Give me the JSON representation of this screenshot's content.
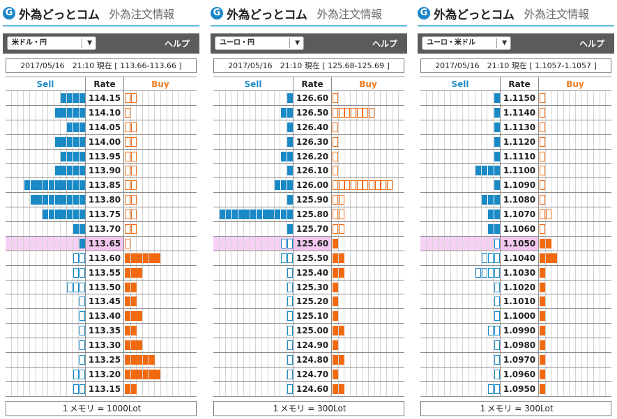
{
  "panels": [
    {
      "brand": "外為どっとコム",
      "brand_icon": "G",
      "subtitle": "外為注文情報",
      "pair": "米ドル・円",
      "help": "ヘルプ",
      "time": "2017/05/16　21:10 現在 [ 113.66-113.66 ]",
      "col_sell": "Sell",
      "col_rate": "Rate",
      "col_buy": "Buy",
      "current_rate": "113.65",
      "footer": "１メモリ = 1000Lot",
      "rows": [
        {
          "rate": "114.15",
          "sell": 4,
          "sell_style": "filled",
          "buy": 2,
          "buy_style": "outline"
        },
        {
          "rate": "114.10",
          "sell": 5,
          "sell_style": "filled",
          "buy": 1,
          "buy_style": "outline"
        },
        {
          "rate": "114.05",
          "sell": 3,
          "sell_style": "filled",
          "buy": 2,
          "buy_style": "outline"
        },
        {
          "rate": "114.00",
          "sell": 5,
          "sell_style": "filled",
          "buy": 2,
          "buy_style": "outline"
        },
        {
          "rate": "113.95",
          "sell": 4,
          "sell_style": "filled",
          "buy": 2,
          "buy_style": "outline"
        },
        {
          "rate": "113.90",
          "sell": 5,
          "sell_style": "filled",
          "buy": 2,
          "buy_style": "outline"
        },
        {
          "rate": "113.85",
          "sell": 10,
          "sell_style": "filled",
          "buy": 2,
          "buy_style": "outline"
        },
        {
          "rate": "113.80",
          "sell": 9,
          "sell_style": "filled",
          "buy": 2,
          "buy_style": "outline"
        },
        {
          "rate": "113.75",
          "sell": 7,
          "sell_style": "filled",
          "buy": 2,
          "buy_style": "outline"
        },
        {
          "rate": "113.70",
          "sell": 2,
          "sell_style": "filled",
          "buy": 2,
          "buy_style": "outline"
        },
        {
          "rate": "113.65",
          "sell": 1,
          "sell_style": "filled",
          "buy": 1,
          "buy_style": "outline"
        },
        {
          "rate": "113.60",
          "sell": 2,
          "sell_style": "outline",
          "buy": 6,
          "buy_style": "filled"
        },
        {
          "rate": "113.55",
          "sell": 2,
          "sell_style": "outline",
          "buy": 3,
          "buy_style": "filled"
        },
        {
          "rate": "113.50",
          "sell": 3,
          "sell_style": "outline",
          "buy": 2,
          "buy_style": "filled"
        },
        {
          "rate": "113.45",
          "sell": 1,
          "sell_style": "outline",
          "buy": 2,
          "buy_style": "filled"
        },
        {
          "rate": "113.40",
          "sell": 1,
          "sell_style": "outline",
          "buy": 3,
          "buy_style": "filled"
        },
        {
          "rate": "113.35",
          "sell": 1,
          "sell_style": "outline",
          "buy": 2,
          "buy_style": "filled"
        },
        {
          "rate": "113.30",
          "sell": 1,
          "sell_style": "outline",
          "buy": 3,
          "buy_style": "filled"
        },
        {
          "rate": "113.25",
          "sell": 1,
          "sell_style": "outline",
          "buy": 5,
          "buy_style": "filled"
        },
        {
          "rate": "113.20",
          "sell": 2,
          "sell_style": "outline",
          "buy": 6,
          "buy_style": "filled"
        },
        {
          "rate": "113.15",
          "sell": 2,
          "sell_style": "outline",
          "buy": 2,
          "buy_style": "filled"
        }
      ]
    },
    {
      "brand": "外為どっとコム",
      "brand_icon": "G",
      "subtitle": "外為注文情報",
      "pair": "ユーロ・円",
      "help": "ヘルプ",
      "time": "2017/05/16　21:10 現在 [ 125.68-125.69 ]",
      "col_sell": "Sell",
      "col_rate": "Rate",
      "col_buy": "Buy",
      "current_rate": "125.60",
      "footer": "１メモリ = 300Lot",
      "rows": [
        {
          "rate": "126.60",
          "sell": 1,
          "sell_style": "filled",
          "buy": 1,
          "buy_style": "outline"
        },
        {
          "rate": "126.50",
          "sell": 2,
          "sell_style": "filled",
          "buy": 7,
          "buy_style": "outline"
        },
        {
          "rate": "126.40",
          "sell": 1,
          "sell_style": "filled",
          "buy": 1,
          "buy_style": "outline"
        },
        {
          "rate": "126.30",
          "sell": 1,
          "sell_style": "filled",
          "buy": 1,
          "buy_style": "outline"
        },
        {
          "rate": "126.20",
          "sell": 2,
          "sell_style": "filled",
          "buy": 1,
          "buy_style": "outline"
        },
        {
          "rate": "126.10",
          "sell": 1,
          "sell_style": "filled",
          "buy": 1,
          "buy_style": "outline"
        },
        {
          "rate": "126.00",
          "sell": 3,
          "sell_style": "filled",
          "buy": 10,
          "buy_style": "outline"
        },
        {
          "rate": "125.90",
          "sell": 1,
          "sell_style": "filled",
          "buy": 2,
          "buy_style": "outline"
        },
        {
          "rate": "125.80",
          "sell": 12,
          "sell_style": "filled",
          "buy": 2,
          "buy_style": "outline"
        },
        {
          "rate": "125.70",
          "sell": 1,
          "sell_style": "filled",
          "buy": 2,
          "buy_style": "outline"
        },
        {
          "rate": "125.60",
          "sell": 2,
          "sell_style": "outline",
          "buy": 1,
          "buy_style": "filled"
        },
        {
          "rate": "125.50",
          "sell": 2,
          "sell_style": "outline",
          "buy": 2,
          "buy_style": "filled"
        },
        {
          "rate": "125.40",
          "sell": 1,
          "sell_style": "outline",
          "buy": 2,
          "buy_style": "filled"
        },
        {
          "rate": "125.30",
          "sell": 1,
          "sell_style": "outline",
          "buy": 1,
          "buy_style": "filled"
        },
        {
          "rate": "125.20",
          "sell": 1,
          "sell_style": "outline",
          "buy": 1,
          "buy_style": "filled"
        },
        {
          "rate": "125.10",
          "sell": 1,
          "sell_style": "outline",
          "buy": 1,
          "buy_style": "filled"
        },
        {
          "rate": "125.00",
          "sell": 1,
          "sell_style": "outline",
          "buy": 2,
          "buy_style": "filled"
        },
        {
          "rate": "124.90",
          "sell": 1,
          "sell_style": "outline",
          "buy": 1,
          "buy_style": "filled"
        },
        {
          "rate": "124.80",
          "sell": 1,
          "sell_style": "outline",
          "buy": 2,
          "buy_style": "filled"
        },
        {
          "rate": "124.70",
          "sell": 1,
          "sell_style": "outline",
          "buy": 1,
          "buy_style": "filled"
        },
        {
          "rate": "124.60",
          "sell": 1,
          "sell_style": "outline",
          "buy": 2,
          "buy_style": "filled"
        }
      ]
    },
    {
      "brand": "外為どっとコム",
      "brand_icon": "G",
      "subtitle": "外為注文情報",
      "pair": "ユーロ・米ドル",
      "help": "ヘルプ",
      "time": "2017/05/16　21:10 現在 [ 1.1057-1.1057 ]",
      "col_sell": "Sell",
      "col_rate": "Rate",
      "col_buy": "Buy",
      "current_rate": "1.1050",
      "footer": "１メモリ = 300Lot",
      "rows": [
        {
          "rate": "1.1150",
          "sell": 1,
          "sell_style": "filled",
          "buy": 1,
          "buy_style": "outline"
        },
        {
          "rate": "1.1140",
          "sell": 1,
          "sell_style": "filled",
          "buy": 1,
          "buy_style": "outline"
        },
        {
          "rate": "1.1130",
          "sell": 1,
          "sell_style": "filled",
          "buy": 1,
          "buy_style": "outline"
        },
        {
          "rate": "1.1120",
          "sell": 1,
          "sell_style": "filled",
          "buy": 1,
          "buy_style": "outline"
        },
        {
          "rate": "1.1110",
          "sell": 1,
          "sell_style": "filled",
          "buy": 1,
          "buy_style": "outline"
        },
        {
          "rate": "1.1100",
          "sell": 4,
          "sell_style": "filled",
          "buy": 1,
          "buy_style": "outline"
        },
        {
          "rate": "1.1090",
          "sell": 1,
          "sell_style": "filled",
          "buy": 1,
          "buy_style": "outline"
        },
        {
          "rate": "1.1080",
          "sell": 3,
          "sell_style": "filled",
          "buy": 1,
          "buy_style": "outline"
        },
        {
          "rate": "1.1070",
          "sell": 2,
          "sell_style": "filled",
          "buy": 2,
          "buy_style": "outline"
        },
        {
          "rate": "1.1060",
          "sell": 2,
          "sell_style": "filled",
          "buy": 1,
          "buy_style": "outline"
        },
        {
          "rate": "1.1050",
          "sell": 1,
          "sell_style": "outline",
          "buy": 2,
          "buy_style": "filled"
        },
        {
          "rate": "1.1040",
          "sell": 3,
          "sell_style": "outline",
          "buy": 3,
          "buy_style": "filled"
        },
        {
          "rate": "1.1030",
          "sell": 4,
          "sell_style": "outline",
          "buy": 1,
          "buy_style": "filled"
        },
        {
          "rate": "1.1020",
          "sell": 1,
          "sell_style": "outline",
          "buy": 1,
          "buy_style": "filled"
        },
        {
          "rate": "1.1010",
          "sell": 1,
          "sell_style": "outline",
          "buy": 1,
          "buy_style": "filled"
        },
        {
          "rate": "1.1000",
          "sell": 1,
          "sell_style": "outline",
          "buy": 1,
          "buy_style": "filled"
        },
        {
          "rate": "1.0990",
          "sell": 2,
          "sell_style": "outline",
          "buy": 1,
          "buy_style": "filled"
        },
        {
          "rate": "1.0980",
          "sell": 1,
          "sell_style": "outline",
          "buy": 1,
          "buy_style": "filled"
        },
        {
          "rate": "1.0970",
          "sell": 1,
          "sell_style": "outline",
          "buy": 1,
          "buy_style": "filled"
        },
        {
          "rate": "1.0960",
          "sell": 1,
          "sell_style": "outline",
          "buy": 1,
          "buy_style": "filled"
        },
        {
          "rate": "1.0950",
          "sell": 2,
          "sell_style": "outline",
          "buy": 1,
          "buy_style": "filled"
        }
      ]
    }
  ],
  "colors": {
    "sell": "#1a8ac6",
    "buy": "#f26a10",
    "current_highlight": "#f3c8ef",
    "header_bar": "#5b5b5b"
  },
  "icons": {
    "logo": "g-circle-icon",
    "dropdown": "chevron-down-icon"
  }
}
